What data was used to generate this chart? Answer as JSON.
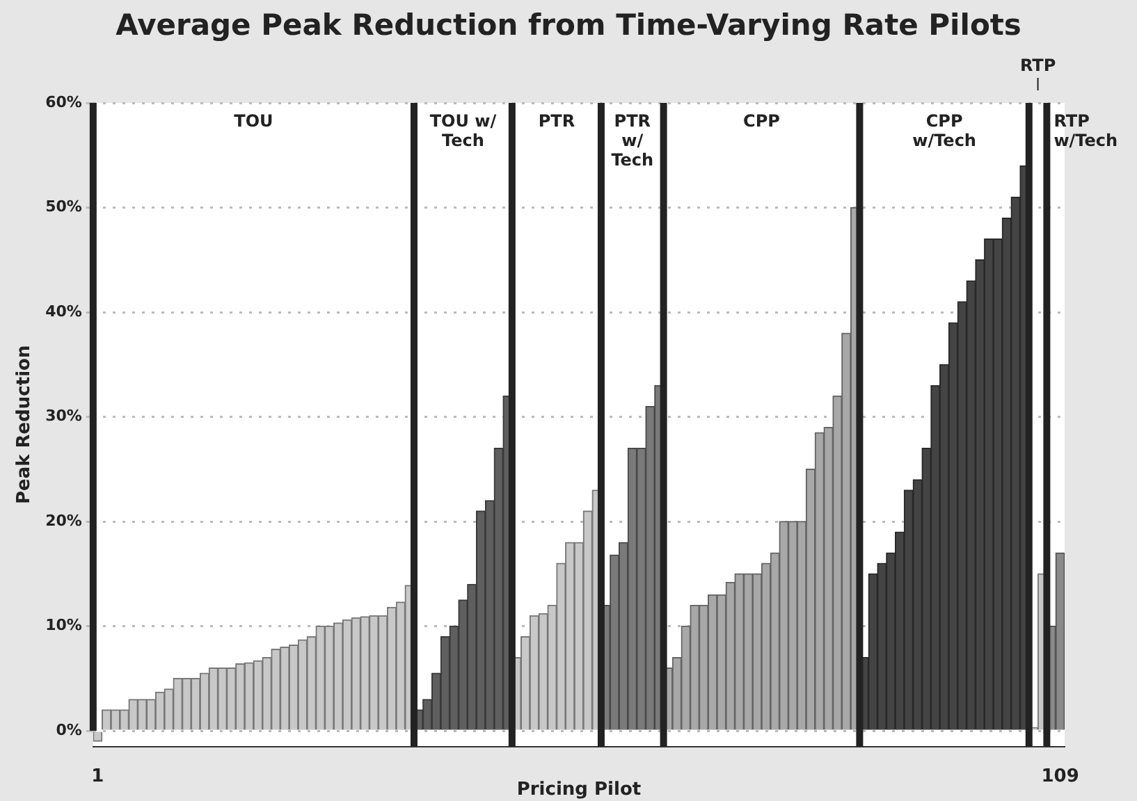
{
  "chart_data": {
    "type": "bar",
    "title": "Average Peak Reduction from Time-Varying Rate Pilots",
    "xlabel": "Pricing Pilot",
    "ylabel": "Peak Reduction",
    "xlim": [
      0.5,
      109.5
    ],
    "xticks": [
      1,
      109
    ],
    "ylim": [
      -1.5,
      60
    ],
    "yticks": [
      {
        "value": 0,
        "label": "0%"
      },
      {
        "value": 10,
        "label": "10%"
      },
      {
        "value": 20,
        "label": "20%"
      },
      {
        "value": 30,
        "label": "30%"
      },
      {
        "value": 40,
        "label": "40%"
      },
      {
        "value": 50,
        "label": "50%"
      },
      {
        "value": 60,
        "label": "60%"
      }
    ],
    "grid": "y",
    "legend": false,
    "ref_lines": [
      {
        "axis": "x",
        "value": 36.5,
        "color": "#222222"
      },
      {
        "axis": "x",
        "value": 47.5,
        "color": "#222222"
      },
      {
        "axis": "x",
        "value": 57.5,
        "color": "#222222"
      },
      {
        "axis": "x",
        "value": 64.5,
        "color": "#222222"
      },
      {
        "axis": "x",
        "value": 86.5,
        "color": "#222222"
      },
      {
        "axis": "x",
        "value": 105.5,
        "color": "#222222"
      },
      {
        "axis": "x",
        "value": 107.5,
        "color": "#222222"
      }
    ],
    "annotations": [
      "TOU",
      "TOU w/ Tech",
      "PTR",
      "PTR w/ Tech",
      "CPP",
      "CPP w/Tech",
      "RTP",
      "RTP w/Tech"
    ],
    "series": [
      {
        "color": "#c8c8c8",
        "x": [
          1,
          2,
          3,
          4,
          5,
          6,
          7,
          8,
          9,
          10,
          11,
          12,
          13,
          14,
          15,
          16,
          17,
          18,
          19,
          20,
          21,
          22,
          23,
          24,
          25,
          26,
          27,
          28,
          29,
          30,
          31,
          32,
          33,
          34,
          35,
          36
        ],
        "values": [
          -1,
          2,
          2,
          2,
          3,
          3,
          3,
          3.7,
          4,
          5,
          5,
          5,
          5.5,
          6,
          6,
          6,
          6.4,
          6.5,
          6.7,
          7,
          7.8,
          8,
          8.2,
          8.7,
          9,
          10,
          10,
          10.3,
          10.6,
          10.8,
          10.9,
          11,
          11,
          11.8,
          12.3,
          13.9
        ]
      },
      {
        "color": "#5f5f5f",
        "x": [
          37,
          38,
          39,
          40,
          41,
          42,
          43,
          44,
          45,
          46,
          47
        ],
        "values": [
          2,
          3,
          5.5,
          9,
          10,
          12.5,
          14,
          21,
          22,
          27,
          32
        ]
      },
      {
        "color": "#c8c8c8",
        "x": [
          48,
          49,
          50,
          51,
          52,
          53,
          54,
          55,
          56,
          57
        ],
        "values": [
          7,
          9,
          11,
          11.2,
          12,
          16,
          18,
          18,
          21,
          23
        ]
      },
      {
        "color": "#7a7a7a",
        "x": [
          58,
          59,
          60,
          61,
          62,
          63,
          64
        ],
        "values": [
          12,
          16.8,
          18,
          27,
          27,
          31,
          33
        ]
      },
      {
        "color": "#a8a8a8",
        "x": [
          65,
          66,
          67,
          68,
          69,
          70,
          71,
          72,
          73,
          74,
          75,
          76,
          77,
          78,
          79,
          80,
          81,
          82,
          83,
          84,
          85,
          86
        ],
        "values": [
          6,
          7,
          10,
          12,
          12,
          13,
          13,
          14.2,
          15,
          15,
          15,
          16,
          17,
          20,
          20,
          20,
          25,
          28.5,
          29,
          32,
          38,
          50
        ]
      },
      {
        "color": "#444444",
        "x": [
          87,
          88,
          89,
          90,
          91,
          92,
          93,
          94,
          95,
          96,
          97,
          98,
          99,
          100,
          101,
          102,
          103,
          104,
          105
        ],
        "values": [
          7,
          15,
          16,
          17,
          19,
          23,
          24,
          27,
          33,
          35,
          39,
          41,
          43,
          45,
          47,
          47,
          49,
          51,
          54
        ]
      },
      {
        "color": "#c8c8c8",
        "x": [
          106,
          107
        ],
        "values": [
          0.3,
          15
        ]
      },
      {
        "color": "#8a8a8a",
        "x": [
          108,
          109
        ],
        "values": [
          10,
          17
        ]
      }
    ]
  }
}
